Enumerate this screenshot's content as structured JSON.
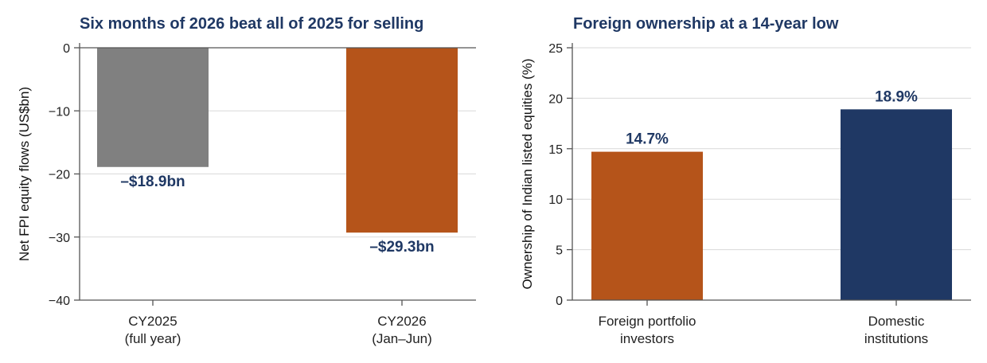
{
  "chart_data": [
    {
      "type": "bar",
      "title": "Six months of 2026 beat all of 2025 for selling",
      "ylabel": "Net FPI equity flows (US$bn)",
      "xlabel": "",
      "ylim": [
        -40,
        0
      ],
      "yticks": [
        0,
        -10,
        -20,
        -30,
        -40
      ],
      "yticklabels": [
        "0",
        "−10",
        "−20",
        "−30",
        "−40"
      ],
      "grid": true,
      "categories": [
        [
          "CY2025",
          "(full year)"
        ],
        [
          "CY2026",
          "(Jan–Jun)"
        ]
      ],
      "values": [
        -18.9,
        -29.3
      ],
      "data_labels": [
        "–$18.9bn",
        "–$29.3bn"
      ],
      "colors": [
        "#808080",
        "#b5541a"
      ]
    },
    {
      "type": "bar",
      "title": "Foreign ownership at a 14-year low",
      "ylabel": "Ownership of Indian listed equities (%)",
      "xlabel": "",
      "ylim": [
        0,
        25
      ],
      "yticks": [
        0,
        5,
        10,
        15,
        20,
        25
      ],
      "yticklabels": [
        "0",
        "5",
        "10",
        "15",
        "20",
        "25"
      ],
      "grid": true,
      "categories": [
        [
          "Foreign portfolio",
          "investors"
        ],
        [
          "Domestic",
          "institutions"
        ]
      ],
      "values": [
        14.7,
        18.9
      ],
      "data_labels": [
        "14.7%",
        "18.9%"
      ],
      "colors": [
        "#b5541a",
        "#1f3864"
      ]
    }
  ]
}
